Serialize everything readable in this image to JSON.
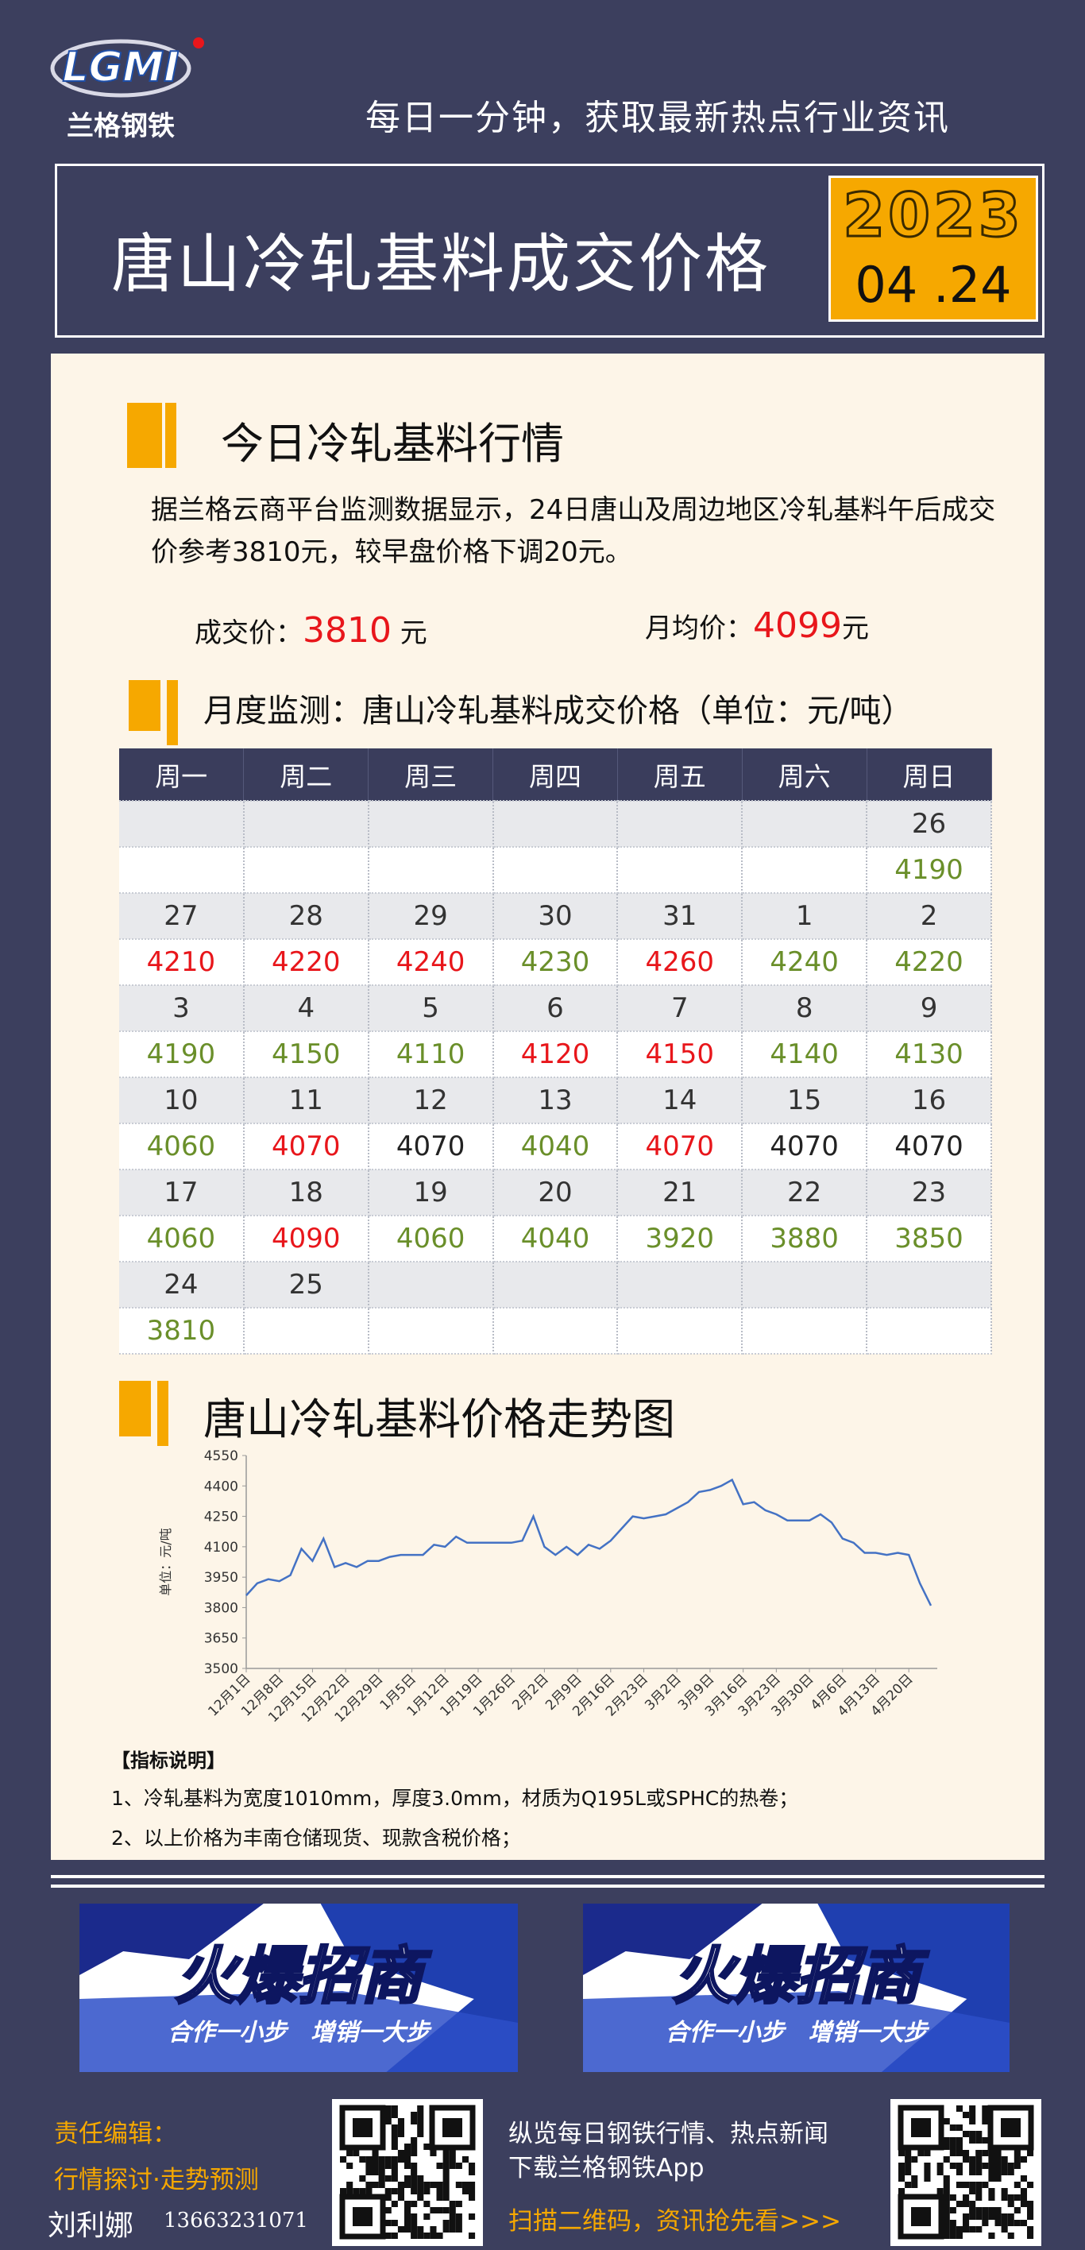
{
  "header": {
    "logo": "LGMI",
    "logo_name": "兰格钢铁",
    "slogan": "每日一分钟，获取最新热点行业资讯"
  },
  "title_box": {
    "title": "唐山冷轧基料成交价格",
    "year": "2023",
    "date": "04 .24"
  },
  "section1": {
    "title": "今日冷轧基料行情",
    "paragraph": "据兰格云商平台监测数据显示，24日唐山及周边地区冷轧基料午后成交价参考3810元，较早盘价格下调20元。",
    "deal_label": "成交价：",
    "deal_value": 3810,
    "deal_unit": "元",
    "avg_label": "月均价：",
    "avg_value": 4099,
    "avg_unit": "元",
    "value_color": "#e8161b"
  },
  "section2": {
    "title": "月度监测：唐山冷轧基料成交价格（单位：元/吨）"
  },
  "calendar": {
    "headers": [
      "周一",
      "周二",
      "周三",
      "周四",
      "周五",
      "周六",
      "周日"
    ],
    "weeks": [
      {
        "days": [
          null,
          null,
          null,
          null,
          null,
          null,
          26
        ],
        "prices": [
          null,
          null,
          null,
          null,
          null,
          null,
          4190
        ],
        "price_colors": [
          null,
          null,
          null,
          null,
          null,
          null,
          "#6a8f2a"
        ]
      },
      {
        "days": [
          27,
          28,
          29,
          30,
          31,
          1,
          2
        ],
        "prices": [
          4210,
          4220,
          4240,
          4230,
          4260,
          4240,
          4220
        ],
        "price_colors": [
          "#e8161b",
          "#e8161b",
          "#e8161b",
          "#6a8f2a",
          "#e8161b",
          "#6a8f2a",
          "#6a8f2a"
        ]
      },
      {
        "days": [
          3,
          4,
          5,
          6,
          7,
          8,
          9
        ],
        "prices": [
          4190,
          4150,
          4110,
          4120,
          4150,
          4140,
          4130
        ],
        "price_colors": [
          "#6a8f2a",
          "#6a8f2a",
          "#6a8f2a",
          "#e8161b",
          "#e8161b",
          "#6a8f2a",
          "#6a8f2a"
        ]
      },
      {
        "days": [
          10,
          11,
          12,
          13,
          14,
          15,
          16
        ],
        "prices": [
          4060,
          4070,
          4070,
          4040,
          4070,
          4070,
          4070
        ],
        "price_colors": [
          "#6a8f2a",
          "#e8161b",
          "#222222",
          "#6a8f2a",
          "#e8161b",
          "#222222",
          "#222222"
        ]
      },
      {
        "days": [
          17,
          18,
          19,
          20,
          21,
          22,
          23
        ],
        "prices": [
          4060,
          4090,
          4060,
          4040,
          3920,
          3880,
          3850
        ],
        "price_colors": [
          "#6a8f2a",
          "#e8161b",
          "#6a8f2a",
          "#6a8f2a",
          "#6a8f2a",
          "#6a8f2a",
          "#6a8f2a"
        ]
      },
      {
        "days": [
          24,
          25,
          null,
          null,
          null,
          null,
          null
        ],
        "prices": [
          3810,
          null,
          null,
          null,
          null,
          null,
          null
        ],
        "price_colors": [
          "#6a8f2a",
          null,
          null,
          null,
          null,
          null,
          null
        ]
      }
    ]
  },
  "section3": {
    "title": "唐山冷轧基料价格走势图"
  },
  "trend_chart": {
    "type": "line",
    "y_label": "单位：元/吨",
    "color": "#4472c4",
    "ylim": [
      3500,
      4550
    ],
    "yticks": [
      3500,
      3650,
      3800,
      3950,
      4100,
      4250,
      4400,
      4550
    ],
    "categories": [
      "12月1日",
      null,
      null,
      "12月8日",
      null,
      null,
      "12月15日",
      null,
      null,
      "12月22日",
      null,
      null,
      "12月29日",
      null,
      null,
      "1月5日",
      null,
      null,
      "1月12日",
      null,
      null,
      "1月19日",
      null,
      null,
      "1月26日",
      null,
      null,
      "2月2日",
      null,
      null,
      "2月9日",
      null,
      null,
      "2月16日",
      null,
      null,
      "2月23日",
      null,
      null,
      "3月2日",
      null,
      null,
      "3月9日",
      null,
      null,
      "3月16日",
      null,
      null,
      "3月23日",
      null,
      null,
      "3月30日",
      null,
      null,
      "4月6日",
      null,
      null,
      "4月13日",
      null,
      null,
      "4月20日",
      null,
      null
    ],
    "values": [
      3860,
      3920,
      3940,
      3930,
      3960,
      4090,
      4030,
      4140,
      4000,
      4020,
      4000,
      4030,
      4030,
      4050,
      4060,
      4060,
      4060,
      4110,
      4100,
      4150,
      4120,
      4120,
      4120,
      4120,
      4120,
      4130,
      4250,
      4100,
      4060,
      4100,
      4060,
      4110,
      4090,
      4130,
      4190,
      4250,
      4240,
      4250,
      4260,
      4290,
      4320,
      4370,
      4380,
      4400,
      4430,
      4310,
      4320,
      4280,
      4260,
      4230,
      4230,
      4230,
      4260,
      4220,
      4140,
      4120,
      4070,
      4070,
      4060,
      4070,
      4060,
      3920,
      3810
    ]
  },
  "notes": {
    "title": "【指标说明】",
    "items": [
      "1、冷轧基料为宽度1010mm，厚度3.0mm，材质为Q195L或SPHC的热卷；",
      "2、以上价格为丰南仓储现货、现款含税价格；"
    ]
  },
  "banners": [
    {
      "title": "火爆招商",
      "subtitle": "合作一小步　增销一大步"
    },
    {
      "title": "火爆招商",
      "subtitle": "合作一小步　增销一大步"
    }
  ],
  "footer": {
    "editor_label": "责任编辑：",
    "editor_topic": "行情探讨·走势预测",
    "editor_name": "刘利娜",
    "phone": "13663231071",
    "line1": "纵览每日钢铁行情、热点新闻",
    "line2": "下载兰格钢铁App",
    "line3": "扫描二维码，资讯抢先看>>>"
  }
}
